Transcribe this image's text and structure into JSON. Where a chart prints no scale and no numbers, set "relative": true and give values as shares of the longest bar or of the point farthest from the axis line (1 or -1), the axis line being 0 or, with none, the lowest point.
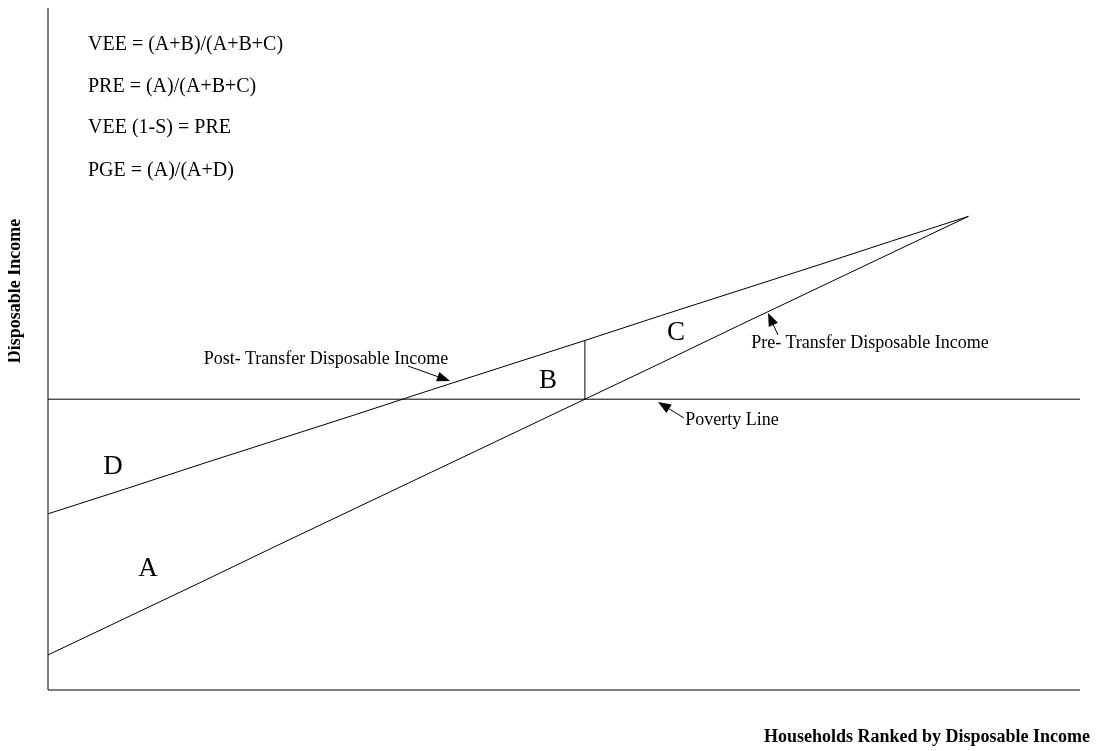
{
  "chart_data": {
    "type": "line",
    "relative": true,
    "xlabel": "Households Ranked by Disposable Income",
    "ylabel": "Disposable Income",
    "tick_labels": false,
    "marker": "none",
    "line_style": "solid",
    "categories": [
      null,
      null,
      null,
      null,
      null,
      null,
      null,
      null,
      null,
      null,
      null,
      null,
      null,
      null
    ],
    "series": [
      {
        "name": "Post- Transfer Disposable Income",
        "color": "#000000",
        "values": [
          0.372,
          0.424,
          0.477,
          0.529,
          0.581,
          0.634,
          0.686,
          0.738,
          0.791,
          0.843,
          0.895,
          0.948,
          1,
          null
        ]
      },
      {
        "name": "Pre- Transfer Disposable Income",
        "color": "#000000",
        "values": [
          0.074,
          0.151,
          0.228,
          0.306,
          0.383,
          0.46,
          0.537,
          0.614,
          0.691,
          0.769,
          0.846,
          0.923,
          1,
          null
        ]
      }
    ],
    "ref_lines": [
      {
        "axis": "y",
        "value": 0.614,
        "label": "Poverty Line",
        "color": "#000000"
      }
    ],
    "annotations": [
      "VEE = (A+B)/(A+B+C)",
      "PRE = (A)/(A+B+C)",
      "VEE (1-S) = PRE",
      "PGE = (A)/(A+D)",
      "D",
      "A",
      "B",
      "C"
    ]
  }
}
